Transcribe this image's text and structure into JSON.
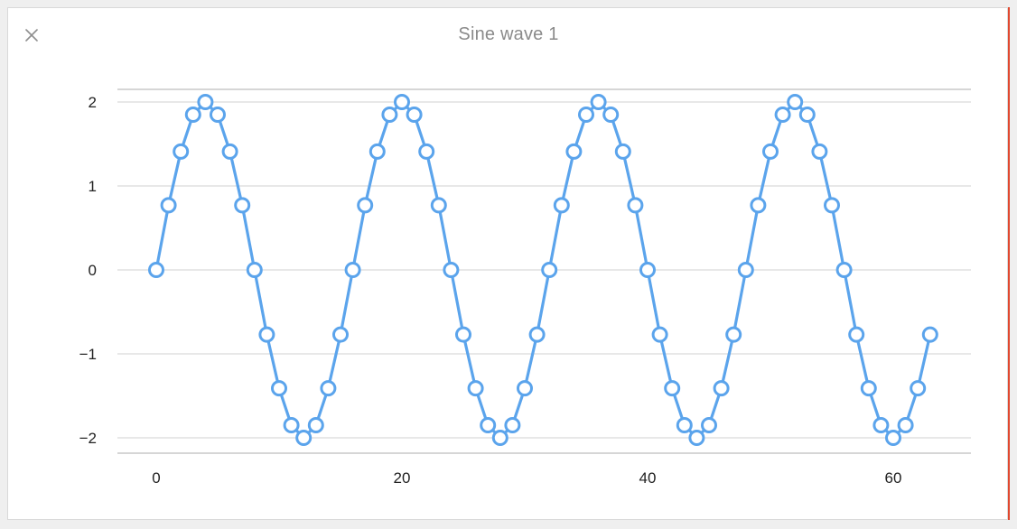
{
  "window": {
    "title": "Sine wave 1",
    "close_icon": "close-icon"
  },
  "colors": {
    "series": "#5ba4ec",
    "grid": "#d2d2d2",
    "axis": "#bdbdbd",
    "tick_text": "#222222",
    "title": "#8a8a8a",
    "accent_border": "#e0482f"
  },
  "chart_data": {
    "type": "line",
    "title": "Sine wave 1",
    "xlabel": "",
    "ylabel": "",
    "xlim": [
      0,
      63
    ],
    "ylim": [
      -2.15,
      2.15
    ],
    "x_ticks": [
      0,
      20,
      40,
      60
    ],
    "x_tick_labels": [
      "0",
      "20",
      "40",
      "60"
    ],
    "y_ticks": [
      2,
      1,
      0,
      -1,
      -2
    ],
    "y_tick_labels": [
      "2",
      "1",
      "0",
      "−1",
      "−2"
    ],
    "grid": true,
    "markers": "hollow-circle",
    "series": [
      {
        "x": [
          0,
          1,
          2,
          3,
          4,
          5,
          6,
          7,
          8,
          9,
          10,
          11,
          12,
          13,
          14,
          15,
          16,
          17,
          18,
          19,
          20,
          21,
          22,
          23,
          24,
          25,
          26,
          27,
          28,
          29,
          30,
          31,
          32,
          33,
          34,
          35,
          36,
          37,
          38,
          39,
          40,
          41,
          42,
          43,
          44,
          45,
          46,
          47,
          48,
          49,
          50,
          51,
          52,
          53,
          54,
          55,
          56,
          57,
          58,
          59,
          60,
          61,
          62,
          63
        ],
        "y": [
          0,
          0.77,
          1.41,
          1.85,
          2,
          1.85,
          1.41,
          0.77,
          0,
          -0.77,
          -1.41,
          -1.85,
          -2,
          -1.85,
          -1.41,
          -0.77,
          0,
          0.77,
          1.41,
          1.85,
          2,
          1.85,
          1.41,
          0.77,
          0,
          -0.77,
          -1.41,
          -1.85,
          -2,
          -1.85,
          -1.41,
          -0.77,
          0,
          0.77,
          1.41,
          1.85,
          2,
          1.85,
          1.41,
          0.77,
          0,
          -0.77,
          -1.41,
          -1.85,
          -2,
          -1.85,
          -1.41,
          -0.77,
          0,
          0.77,
          1.41,
          1.85,
          2,
          1.85,
          1.41,
          0.77,
          0,
          -0.77,
          -1.41,
          -1.85,
          -2,
          -1.85,
          -1.41,
          -0.77
        ]
      }
    ]
  }
}
